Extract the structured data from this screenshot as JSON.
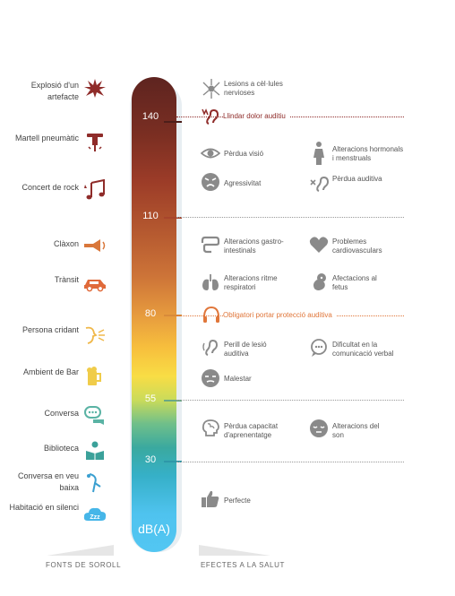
{
  "colors": {
    "accent_red": "#8f2c2a",
    "accent_orange": "#e0763a",
    "icon_gray": "#8a8a8a",
    "source_icon_colors": [
      "#8f2c2a",
      "#8f2c2a",
      "#8f2c2a",
      "#d9773a",
      "#e06a3a",
      "#f0b84a",
      "#f0cc4a",
      "#5ab3a4",
      "#3ba19a",
      "#3a9fd0",
      "#46b6e8"
    ]
  },
  "scale": {
    "unit": "dB(A)",
    "ticks": [
      "140",
      "110",
      "80",
      "55",
      "30"
    ]
  },
  "sources": [
    {
      "label": "Explosió d'un artefacte",
      "icon": "explosion-icon"
    },
    {
      "label": "Martell pneumàtic",
      "icon": "jackhammer-icon"
    },
    {
      "label": "Concert de rock",
      "icon": "music-notes-icon"
    },
    {
      "label": "Clàxon",
      "icon": "horn-icon"
    },
    {
      "label": "Trànsit",
      "icon": "car-icon"
    },
    {
      "label": "Persona cridant",
      "icon": "shouting-icon"
    },
    {
      "label": "Ambient de Bar",
      "icon": "beer-icon"
    },
    {
      "label": "Conversa",
      "icon": "chat-bubbles-icon"
    },
    {
      "label": "Biblioteca",
      "icon": "reader-icon"
    },
    {
      "label": "Conversa en veu baixa",
      "icon": "whisper-icon"
    },
    {
      "label": "Habitació en silenci",
      "icon": "sleep-icon"
    }
  ],
  "thresholds": [
    {
      "text": "Llindar dolor auditiu",
      "icon": "ear-pain-icon"
    },
    {
      "text": "Obligatori portar protecció auditiva",
      "icon": "headphones-icon"
    }
  ],
  "effects": [
    {
      "text": "Lesions a cèl·lules nervioses",
      "icon": "nerve-cell-icon"
    },
    {
      "text": "Pèrdua visió",
      "icon": "eye-icon"
    },
    {
      "text": "Alteracions hormonals i menstruals",
      "icon": "woman-icon"
    },
    {
      "text": "Agressivitat",
      "icon": "angry-face-icon"
    },
    {
      "text": "Pèrdua auditiva",
      "icon": "ear-cross-icon"
    },
    {
      "text": "Alteracions gastro-intestinals",
      "icon": "intestine-icon"
    },
    {
      "text": "Problemes cardiovasculars",
      "icon": "heart-icon"
    },
    {
      "text": "Alteracions ritme respiratori",
      "icon": "lungs-icon"
    },
    {
      "text": "Afectacions al fetus",
      "icon": "fetus-icon"
    },
    {
      "text": "Perill de lesió auditiva",
      "icon": "ear-icon"
    },
    {
      "text": "Dificultat en la comunicació verbal",
      "icon": "speech-bubble-icon"
    },
    {
      "text": "Malestar",
      "icon": "unwell-face-icon"
    },
    {
      "text": "Pèrdua capacitat d'aprenentatge",
      "icon": "brain-icon"
    },
    {
      "text": "Alteracions del son",
      "icon": "sleepy-face-icon"
    },
    {
      "text": "Perfecte",
      "icon": "thumbs-up-icon"
    }
  ],
  "footer": {
    "left": "FONTS DE SOROLL",
    "right": "EFECTES A LA SALUT"
  }
}
